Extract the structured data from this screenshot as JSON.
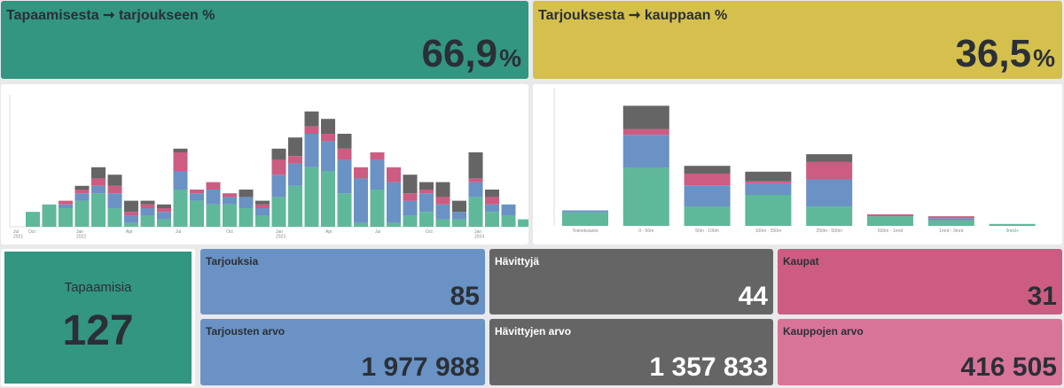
{
  "kpis": {
    "meeting_to_offer": {
      "title": "Tapaamisesta ➞ tarjoukseen %",
      "value": "66,9",
      "unit": "%",
      "color": "#339680"
    },
    "offer_to_deal": {
      "title": "Tarjouksesta ➞ kauppaan %",
      "value": "36,5",
      "unit": "%",
      "color": "#d5c04d"
    }
  },
  "tiles": {
    "meetings": {
      "label": "Tapaamisia",
      "value": "127",
      "color": "#339680"
    },
    "offers": {
      "label": "Tarjouksia",
      "value": "85",
      "color": "#6a92c4"
    },
    "lost": {
      "label": "Hävittyjä",
      "value": "44",
      "color": "#656565"
    },
    "deals": {
      "label": "Kaupat",
      "value": "31",
      "color": "#cd5c82"
    },
    "offers_value": {
      "label": "Tarjousten arvo",
      "value": "1 977 988",
      "color": "#6a92c4"
    },
    "lost_value": {
      "label": "Hävittyjen arvo",
      "value": "1 357 833",
      "color": "#656565"
    },
    "deals_value": {
      "label": "Kauppojen arvo",
      "value": "416 505",
      "color": "#d97499"
    }
  },
  "chart_data": [
    {
      "type": "bar",
      "stacked": true,
      "x_tick_labels": [
        "Jul\n2021",
        "Oct",
        "Jan\n2022",
        "Apr",
        "Jul",
        "Oct",
        "Jan\n2023",
        "Apr",
        "Jul",
        "Oct",
        "Jan\n2024"
      ],
      "series_colors": [
        "#5fb89a",
        "#6a92c4",
        "#cd5c82",
        "#656565"
      ],
      "bars": [
        [
          4,
          0,
          0,
          0
        ],
        [
          6,
          0,
          0,
          0
        ],
        [
          5,
          1,
          1,
          0
        ],
        [
          7,
          2,
          1,
          1
        ],
        [
          9,
          2,
          2,
          3
        ],
        [
          5,
          4,
          2,
          3
        ],
        [
          1,
          2,
          1,
          3
        ],
        [
          3,
          2,
          1,
          1
        ],
        [
          2,
          2,
          1,
          1
        ],
        [
          10,
          5,
          5,
          1
        ],
        [
          7,
          2,
          1,
          0
        ],
        [
          6,
          4,
          2,
          0
        ],
        [
          6,
          2,
          1,
          0
        ],
        [
          5,
          3,
          0,
          2
        ],
        [
          3,
          2,
          1,
          1
        ],
        [
          8,
          6,
          4,
          3
        ],
        [
          11,
          6,
          2,
          5
        ],
        [
          16,
          9,
          2,
          4
        ],
        [
          15,
          8,
          2,
          4
        ],
        [
          9,
          9,
          3,
          4
        ],
        [
          1,
          12,
          3,
          0
        ],
        [
          10,
          8,
          2,
          0
        ],
        [
          1,
          11,
          4,
          0
        ],
        [
          3,
          4,
          2,
          5
        ],
        [
          4,
          5,
          1,
          2
        ],
        [
          2,
          4,
          2,
          4
        ],
        [
          2,
          2,
          0,
          3
        ],
        [
          8,
          4,
          1,
          7
        ],
        [
          4,
          2,
          2,
          2
        ],
        [
          3,
          3,
          0,
          0
        ],
        [
          2,
          0,
          0,
          0
        ]
      ],
      "grid": false,
      "legend": "none"
    },
    {
      "type": "bar",
      "stacked": true,
      "categories": [
        "Toimeksianto",
        "0 - 50m",
        "50m - 100m",
        "100m - 250m",
        "250m - 500m",
        "500m - 1mrd",
        "1mrd - 3mrd",
        "3mrd+"
      ],
      "series_colors": [
        "#5fb89a",
        "#6a92c4",
        "#cd5c82",
        "#656565"
      ],
      "bars": [
        [
          7,
          1,
          0,
          0
        ],
        [
          30,
          17,
          3,
          12
        ],
        [
          10,
          11,
          6,
          4
        ],
        [
          16,
          6,
          1,
          5
        ],
        [
          10,
          14,
          9,
          4
        ],
        [
          5,
          0,
          1,
          0
        ],
        [
          3,
          1,
          1,
          0
        ],
        [
          1,
          0,
          0,
          0
        ]
      ],
      "grid": false,
      "legend": "none"
    }
  ]
}
